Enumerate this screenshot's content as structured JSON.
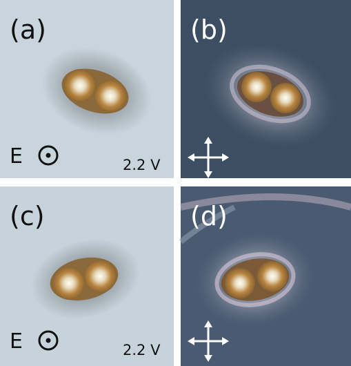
{
  "panels": [
    {
      "label": "(a)",
      "field": "E",
      "voltage": "2.2 V"
    },
    {
      "label": "(b)"
    },
    {
      "label": "(c)",
      "field": "E",
      "voltage": "2.2 V"
    },
    {
      "label": "(d)"
    }
  ]
}
